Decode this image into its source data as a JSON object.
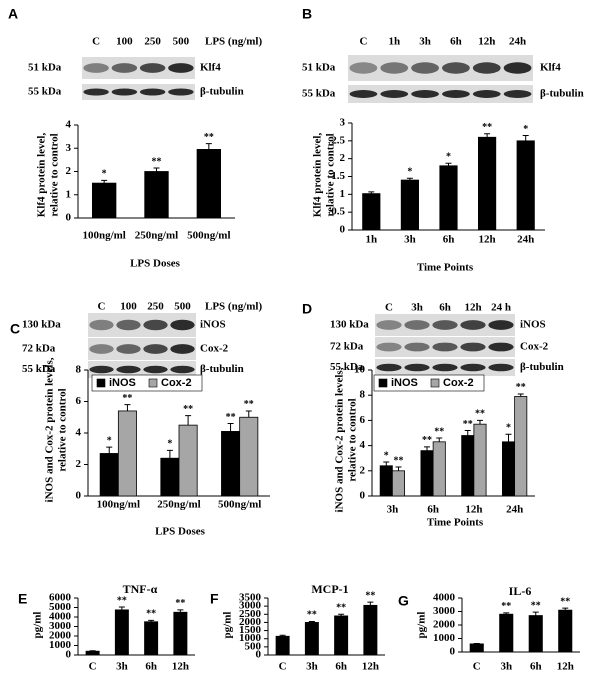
{
  "chart_data": [
    {
      "panel": "A",
      "type": "bar",
      "blot": {
        "lanes": [
          "C",
          "100",
          "250",
          "500"
        ],
        "treatment": "LPS (ng/ml)",
        "rows": [
          {
            "kda": "51 kDa",
            "protein": "Klf4"
          },
          {
            "kda": "55 kDa",
            "protein": "β-tubulin"
          }
        ]
      },
      "ylabel": [
        "Klf4 protein level,",
        "relative to control"
      ],
      "xlabel": "LPS Doses",
      "categories": [
        "100ng/ml",
        "250ng/ml",
        "500ng/ml"
      ],
      "values": [
        1.5,
        2.0,
        2.95
      ],
      "errors": [
        0.12,
        0.15,
        0.25
      ],
      "annotations": [
        "*",
        "**",
        "**"
      ],
      "color": "#000000",
      "ylim": [
        0,
        4
      ],
      "yticks": [
        0,
        1,
        2,
        3,
        4
      ]
    },
    {
      "panel": "B",
      "type": "bar",
      "blot": {
        "lanes": [
          "C",
          "1h",
          "3h",
          "6h",
          "12h",
          "24h"
        ],
        "rows": [
          {
            "kda": "51 kDa",
            "protein": "Klf4"
          },
          {
            "kda": "55 kDa",
            "protein": "β-tubulin"
          }
        ]
      },
      "ylabel": [
        "Klf4 protein level,",
        "relative to control"
      ],
      "xlabel": "Time Points",
      "categories": [
        "1h",
        "3h",
        "6h",
        "12h",
        "24h"
      ],
      "values": [
        1.02,
        1.4,
        1.8,
        2.6,
        2.5
      ],
      "errors": [
        0.05,
        0.05,
        0.07,
        0.1,
        0.15
      ],
      "annotations": [
        null,
        "*",
        "*",
        "**",
        "*"
      ],
      "color": "#000000",
      "ylim": [
        0,
        3
      ],
      "yticks": [
        0,
        0.5,
        1,
        1.5,
        2,
        2.5,
        3
      ]
    },
    {
      "panel": "C",
      "type": "grouped-bar",
      "blot": {
        "lanes": [
          "C",
          "100",
          "250",
          "500"
        ],
        "treatment": "LPS (ng/ml)",
        "rows": [
          {
            "kda": "130 kDa",
            "protein": "iNOS"
          },
          {
            "kda": "72 kDa",
            "protein": "Cox-2"
          },
          {
            "kda": "55 kDa",
            "protein": "β-tubulin"
          }
        ]
      },
      "ylabel": [
        "iNOS and Cox-2 protein levels,",
        "relative to control"
      ],
      "xlabel": "LPS Doses",
      "categories": [
        "100ng/ml",
        "250ng/ml",
        "500ng/ml"
      ],
      "series": [
        {
          "name": "iNOS",
          "color": "#000000",
          "values": [
            2.7,
            2.4,
            4.1
          ],
          "errors": [
            0.4,
            0.5,
            0.5
          ],
          "annotations": [
            "*",
            "*",
            "**"
          ]
        },
        {
          "name": "Cox-2",
          "color": "#a6a6a6",
          "values": [
            5.4,
            4.5,
            5.0
          ],
          "errors": [
            0.4,
            0.6,
            0.4
          ],
          "annotations": [
            "**",
            "**",
            "**"
          ]
        }
      ],
      "ylim": [
        0,
        8
      ],
      "yticks": [
        0,
        2,
        4,
        6,
        8
      ],
      "legend": "top-left"
    },
    {
      "panel": "D",
      "type": "grouped-bar",
      "blot": {
        "lanes": [
          "C",
          "3h",
          "6h",
          "12h",
          "24 h"
        ],
        "rows": [
          {
            "kda": "130 kDa",
            "protein": "iNOS"
          },
          {
            "kda": "72 kDa",
            "protein": "Cox-2"
          },
          {
            "kda": "55 kDa",
            "protein": "β-tubulin"
          }
        ]
      },
      "ylabel": [
        "iNOS and Cox-2 protein levels,",
        "relative to control"
      ],
      "xlabel": "Time Points",
      "categories": [
        "3h",
        "6h",
        "12h",
        "24h"
      ],
      "series": [
        {
          "name": "iNOS",
          "color": "#000000",
          "values": [
            2.4,
            3.6,
            4.8,
            4.3
          ],
          "errors": [
            0.3,
            0.3,
            0.4,
            0.6
          ],
          "annotations": [
            "*",
            "**",
            "**",
            "*"
          ]
        },
        {
          "name": "Cox-2",
          "color": "#a6a6a6",
          "values": [
            2.0,
            4.3,
            5.7,
            7.9
          ],
          "errors": [
            0.3,
            0.3,
            0.3,
            0.2
          ],
          "annotations": [
            "**",
            "**",
            "**",
            "**"
          ]
        }
      ],
      "ylim": [
        0,
        10
      ],
      "yticks": [
        0,
        2,
        4,
        6,
        8,
        10
      ],
      "legend": "top-left"
    },
    {
      "panel": "E",
      "type": "bar",
      "title": "TNF-α",
      "ylabel": [
        "pg/ml"
      ],
      "categories": [
        "C",
        "3h",
        "6h",
        "12h"
      ],
      "values": [
        400,
        4750,
        3500,
        4500
      ],
      "errors": [
        50,
        300,
        150,
        250
      ],
      "annotations": [
        null,
        "**",
        "**",
        "**"
      ],
      "color": "#000000",
      "ylim": [
        0,
        6000
      ],
      "yticks": [
        0,
        1000,
        2000,
        3000,
        4000,
        5000,
        6000
      ]
    },
    {
      "panel": "F",
      "type": "bar",
      "title": "MCP-1",
      "ylabel": [
        "pg/ml"
      ],
      "categories": [
        "C",
        "3h",
        "6h",
        "12h"
      ],
      "values": [
        1150,
        2000,
        2400,
        3050
      ],
      "errors": [
        60,
        60,
        100,
        200
      ],
      "annotations": [
        null,
        "**",
        "**",
        "**"
      ],
      "color": "#000000",
      "ylim": [
        0,
        3500
      ],
      "yticks": [
        0,
        500,
        1000,
        1500,
        2000,
        2500,
        3000,
        3500
      ]
    },
    {
      "panel": "G",
      "type": "bar",
      "title": "IL-6",
      "ylabel": [
        "pg/ml"
      ],
      "categories": [
        "C",
        "3h",
        "6h",
        "12h"
      ],
      "values": [
        600,
        2800,
        2700,
        3100
      ],
      "errors": [
        30,
        100,
        250,
        150
      ],
      "annotations": [
        null,
        "**",
        "**",
        "**"
      ],
      "color": "#000000",
      "ylim": [
        0,
        4000
      ],
      "yticks": [
        0,
        1000,
        2000,
        3000,
        4000
      ]
    }
  ]
}
